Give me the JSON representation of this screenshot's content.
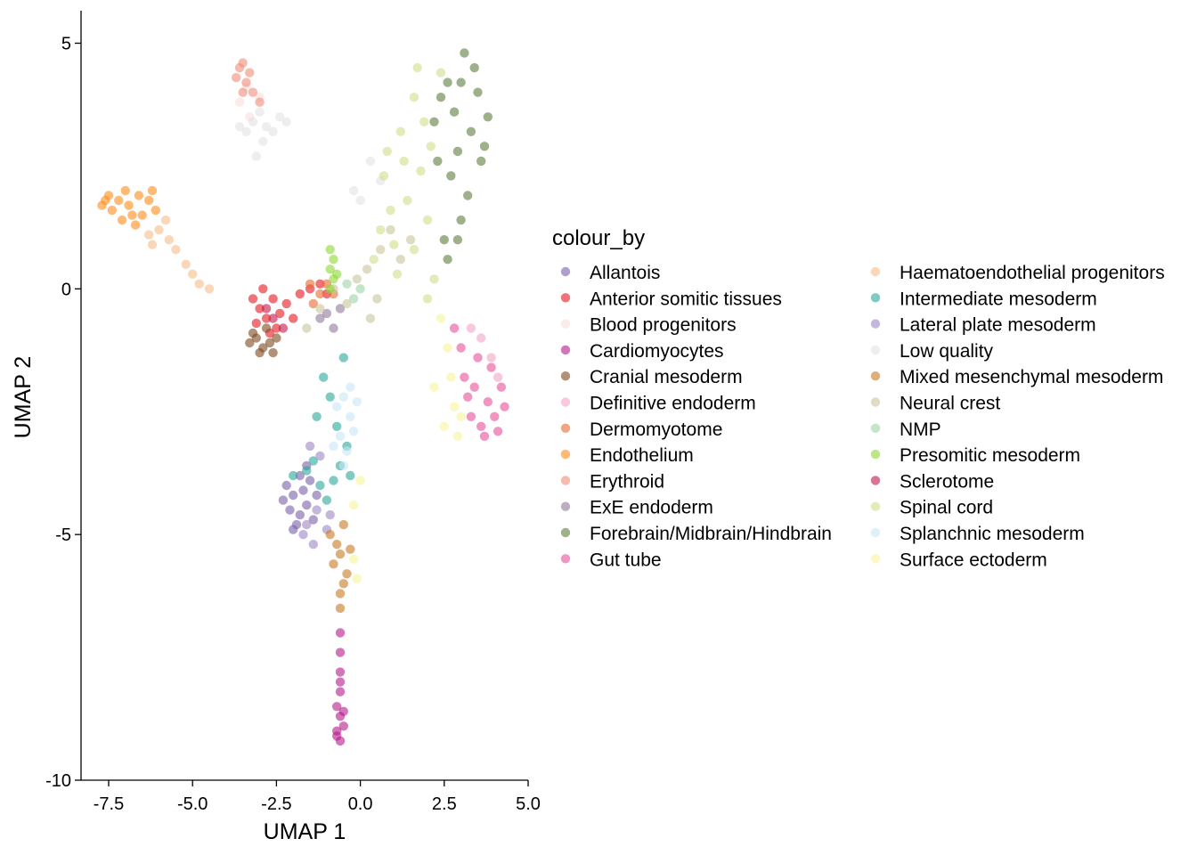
{
  "chart_data": {
    "type": "scatter",
    "title": "",
    "xlabel": "UMAP 1",
    "ylabel": "UMAP 2",
    "xlim": [
      -8.5,
      5.0
    ],
    "ylim": [
      -10.0,
      5.6
    ],
    "x_ticks": [
      -7.5,
      -5.0,
      -2.5,
      0.0,
      2.5,
      5.0
    ],
    "x_tick_labels": [
      "-7.5",
      "-5.0",
      "-2.5",
      "0.0",
      "2.5",
      "5.0"
    ],
    "y_ticks": [
      5,
      0,
      -5,
      -10
    ],
    "y_tick_labels": [
      "5",
      "0",
      "-5",
      "-10"
    ],
    "grid": false,
    "legend": {
      "title": "colour_by",
      "placement": "right",
      "columns": 2
    },
    "point_opacity": 0.6,
    "series": [
      {
        "name": "Allantois",
        "color": "#7a5fa8",
        "points": [
          [
            -2.0,
            -4.2
          ],
          [
            -1.8,
            -4.6
          ],
          [
            -2.2,
            -4.0
          ],
          [
            -1.6,
            -4.4
          ],
          [
            -1.9,
            -4.8
          ],
          [
            -2.1,
            -4.5
          ],
          [
            -1.5,
            -3.9
          ],
          [
            -1.7,
            -4.1
          ],
          [
            -2.3,
            -4.3
          ],
          [
            -1.4,
            -4.7
          ],
          [
            -1.8,
            -3.8
          ],
          [
            -2.0,
            -4.9
          ],
          [
            -1.3,
            -4.2
          ],
          [
            -1.6,
            -3.6
          ]
        ]
      },
      {
        "name": "Anterior somitic tissues",
        "color": "#e6151f",
        "points": [
          [
            -3.0,
            -0.4
          ],
          [
            -2.8,
            -0.6
          ],
          [
            -2.6,
            -0.2
          ],
          [
            -2.4,
            -0.5
          ],
          [
            -3.1,
            -0.7
          ],
          [
            -2.2,
            -0.3
          ],
          [
            -1.8,
            -0.1
          ],
          [
            -2.9,
            0.0
          ],
          [
            -2.5,
            -0.8
          ],
          [
            -2.0,
            -0.6
          ],
          [
            -1.5,
            0.0
          ],
          [
            -1.2,
            0.1
          ],
          [
            -3.2,
            -0.2
          ],
          [
            -2.7,
            -0.9
          ],
          [
            -1.0,
            -0.1
          ]
        ]
      },
      {
        "name": "Blood progenitors",
        "color": "#f9dede",
        "points": [
          [
            -3.6,
            3.8
          ],
          [
            -3.3,
            3.5
          ],
          [
            -3.0,
            3.9
          ],
          [
            -3.4,
            4.1
          ]
        ]
      },
      {
        "name": "Cardiomyocytes",
        "color": "#b5198a",
        "points": [
          [
            -0.6,
            -8.7
          ],
          [
            -0.7,
            -9.0
          ],
          [
            -0.6,
            -9.2
          ],
          [
            -0.5,
            -8.9
          ],
          [
            -0.7,
            -8.5
          ],
          [
            -0.6,
            -8.2
          ],
          [
            -0.6,
            -7.8
          ],
          [
            -0.6,
            -7.4
          ],
          [
            -0.6,
            -7.0
          ],
          [
            -0.7,
            -9.1
          ],
          [
            -0.5,
            -8.6
          ],
          [
            -0.6,
            -8.0
          ]
        ]
      },
      {
        "name": "Cranial mesoderm",
        "color": "#7d4a1f",
        "points": [
          [
            -3.1,
            -1.0
          ],
          [
            -2.9,
            -1.2
          ],
          [
            -3.2,
            -0.9
          ],
          [
            -2.7,
            -1.1
          ],
          [
            -3.0,
            -1.3
          ],
          [
            -2.5,
            -1.0
          ],
          [
            -2.8,
            -0.8
          ],
          [
            -3.3,
            -1.1
          ],
          [
            -2.6,
            -1.3
          ]
        ]
      },
      {
        "name": "Definitive endoderm",
        "color": "#f4a3c7",
        "points": [
          [
            3.6,
            -1.0
          ],
          [
            3.9,
            -1.4
          ],
          [
            3.3,
            -0.8
          ],
          [
            4.1,
            -1.8
          ]
        ]
      },
      {
        "name": "Dermomyotome",
        "color": "#e86a30",
        "points": [
          [
            -1.5,
            0.1
          ],
          [
            -1.2,
            -0.1
          ],
          [
            -1.0,
            0.1
          ],
          [
            -1.4,
            -0.3
          ],
          [
            -0.8,
            -0.1
          ]
        ]
      },
      {
        "name": "Endothelium",
        "color": "#ff8c1a",
        "points": [
          [
            -7.5,
            1.9
          ],
          [
            -7.2,
            1.8
          ],
          [
            -6.9,
            1.7
          ],
          [
            -6.6,
            1.9
          ],
          [
            -7.4,
            1.6
          ],
          [
            -7.0,
            2.0
          ],
          [
            -6.8,
            1.5
          ],
          [
            -7.6,
            1.8
          ],
          [
            -6.3,
            1.8
          ],
          [
            -6.1,
            1.6
          ],
          [
            -7.1,
            1.4
          ],
          [
            -6.5,
            1.5
          ],
          [
            -7.7,
            1.7
          ],
          [
            -6.7,
            1.3
          ],
          [
            -6.2,
            2.0
          ]
        ]
      },
      {
        "name": "Erythroid",
        "color": "#f28c78",
        "points": [
          [
            -3.6,
            4.5
          ],
          [
            -3.4,
            4.2
          ],
          [
            -3.2,
            4.0
          ],
          [
            -3.5,
            4.0
          ],
          [
            -3.7,
            4.3
          ],
          [
            -3.3,
            4.4
          ],
          [
            -3.0,
            3.8
          ],
          [
            -3.5,
            4.6
          ]
        ]
      },
      {
        "name": "ExE endoderm",
        "color": "#8f7a99",
        "points": [
          [
            -1.0,
            -0.5
          ],
          [
            -0.8,
            -0.8
          ],
          [
            -1.2,
            -0.6
          ],
          [
            -0.6,
            -0.4
          ]
        ]
      },
      {
        "name": "Forebrain/Midbrain/Hindbrain",
        "color": "#5e7d3e",
        "points": [
          [
            2.6,
            4.2
          ],
          [
            2.8,
            3.6
          ],
          [
            3.1,
            4.8
          ],
          [
            2.4,
            3.9
          ],
          [
            3.3,
            3.2
          ],
          [
            2.9,
            2.8
          ],
          [
            3.5,
            4.0
          ],
          [
            2.7,
            2.3
          ],
          [
            3.2,
            1.9
          ],
          [
            3.0,
            1.4
          ],
          [
            2.5,
            1.0
          ],
          [
            3.6,
            2.6
          ],
          [
            2.2,
            3.4
          ],
          [
            3.8,
            3.5
          ],
          [
            3.4,
            4.5
          ],
          [
            2.9,
            1.0
          ],
          [
            2.6,
            0.6
          ],
          [
            3.0,
            4.2
          ],
          [
            3.7,
            2.9
          ],
          [
            2.3,
            2.6
          ]
        ]
      },
      {
        "name": "Gut tube",
        "color": "#e8509b",
        "points": [
          [
            3.4,
            -2.0
          ],
          [
            3.8,
            -2.3
          ],
          [
            4.0,
            -2.6
          ],
          [
            3.6,
            -2.8
          ],
          [
            3.2,
            -2.2
          ],
          [
            4.2,
            -2.0
          ],
          [
            3.9,
            -1.6
          ],
          [
            3.5,
            -1.4
          ],
          [
            3.0,
            -1.2
          ],
          [
            2.8,
            -0.8
          ],
          [
            4.1,
            -2.9
          ],
          [
            3.7,
            -3.0
          ],
          [
            3.3,
            -2.6
          ],
          [
            4.3,
            -2.4
          ],
          [
            3.1,
            -1.8
          ]
        ]
      },
      {
        "name": "Haematoendothelial progenitors",
        "color": "#f8bd8c",
        "points": [
          [
            -6.0,
            1.2
          ],
          [
            -5.7,
            1.0
          ],
          [
            -6.3,
            1.1
          ],
          [
            -5.5,
            0.8
          ],
          [
            -5.2,
            0.5
          ],
          [
            -5.0,
            0.3
          ],
          [
            -5.8,
            1.4
          ],
          [
            -6.2,
            0.9
          ],
          [
            -4.8,
            0.1
          ],
          [
            -4.5,
            0.0
          ]
        ]
      },
      {
        "name": "Intermediate mesoderm",
        "color": "#2aa69b",
        "points": [
          [
            -2.0,
            -3.8
          ],
          [
            -1.6,
            -3.7
          ],
          [
            -1.2,
            -4.0
          ],
          [
            -0.8,
            -3.9
          ],
          [
            -1.4,
            -3.5
          ],
          [
            -0.6,
            -3.6
          ],
          [
            -1.0,
            -4.3
          ],
          [
            -0.3,
            -3.8
          ],
          [
            -0.9,
            -2.2
          ],
          [
            -0.5,
            -1.4
          ],
          [
            -1.1,
            -1.8
          ],
          [
            -0.7,
            -2.8
          ],
          [
            -0.4,
            -3.2
          ],
          [
            -1.3,
            -2.6
          ]
        ]
      },
      {
        "name": "Lateral plate mesoderm",
        "color": "#9e87c4",
        "points": [
          [
            -1.6,
            -4.8
          ],
          [
            -1.3,
            -4.5
          ],
          [
            -1.0,
            -4.9
          ],
          [
            -1.7,
            -5.0
          ],
          [
            -1.2,
            -3.4
          ],
          [
            -1.5,
            -3.2
          ],
          [
            -1.4,
            -5.2
          ],
          [
            -0.9,
            -4.6
          ]
        ]
      },
      {
        "name": "Low quality",
        "color": "#e3e3e3",
        "points": [
          [
            -3.2,
            3.4
          ],
          [
            -2.8,
            3.3
          ],
          [
            -2.4,
            3.5
          ],
          [
            -3.6,
            3.3
          ],
          [
            -3.0,
            3.6
          ],
          [
            -2.6,
            3.2
          ],
          [
            -2.2,
            3.4
          ],
          [
            -3.4,
            3.2
          ],
          [
            -2.9,
            3.0
          ],
          [
            -3.1,
            2.7
          ],
          [
            -0.2,
            2.0
          ],
          [
            0.3,
            2.6
          ],
          [
            0.0,
            1.8
          ],
          [
            0.6,
            2.2
          ]
        ]
      },
      {
        "name": "Mixed mesenchymal mesoderm",
        "color": "#c87a22",
        "points": [
          [
            -0.6,
            -5.4
          ],
          [
            -0.4,
            -5.8
          ],
          [
            -0.7,
            -5.2
          ],
          [
            -0.5,
            -6.0
          ],
          [
            -0.8,
            -5.6
          ],
          [
            -0.3,
            -5.3
          ],
          [
            -0.6,
            -6.2
          ],
          [
            -0.6,
            -6.5
          ],
          [
            -0.9,
            -5.0
          ],
          [
            -0.5,
            -4.8
          ]
        ]
      },
      {
        "name": "Neural crest",
        "color": "#c8c79c",
        "points": [
          [
            -1.2,
            -0.4
          ],
          [
            -0.8,
            0.0
          ],
          [
            -0.4,
            -0.3
          ],
          [
            0.2,
            0.4
          ],
          [
            0.6,
            0.8
          ],
          [
            0.9,
            1.2
          ],
          [
            0.3,
            -0.6
          ],
          [
            -0.1,
            0.2
          ],
          [
            1.2,
            0.6
          ],
          [
            0.5,
            -0.2
          ],
          [
            -1.6,
            -0.8
          ],
          [
            1.5,
            1.0
          ]
        ]
      },
      {
        "name": "NMP",
        "color": "#9fd3a6",
        "points": [
          [
            -0.2,
            -0.2
          ],
          [
            0.0,
            0.0
          ],
          [
            -0.4,
            0.1
          ]
        ]
      },
      {
        "name": "Presomitic mesoderm",
        "color": "#8ed832",
        "points": [
          [
            -0.9,
            0.8
          ],
          [
            -0.8,
            0.6
          ],
          [
            -0.9,
            0.4
          ],
          [
            -0.8,
            0.2
          ],
          [
            -0.9,
            0.0
          ],
          [
            -0.7,
            0.3
          ]
        ]
      },
      {
        "name": "Sclerotome",
        "color": "#c0184f",
        "points": [
          [
            -2.6,
            -0.6
          ],
          [
            -2.3,
            -0.8
          ],
          [
            -2.8,
            -0.4
          ]
        ]
      },
      {
        "name": "Spinal cord",
        "color": "#cfe08a",
        "points": [
          [
            1.6,
            3.9
          ],
          [
            1.2,
            3.2
          ],
          [
            0.8,
            2.8
          ],
          [
            1.8,
            2.4
          ],
          [
            1.4,
            1.8
          ],
          [
            2.0,
            1.4
          ],
          [
            0.9,
            1.6
          ],
          [
            1.6,
            0.8
          ],
          [
            2.2,
            0.2
          ],
          [
            1.3,
            2.6
          ],
          [
            2.4,
            4.4
          ],
          [
            1.9,
            3.4
          ],
          [
            0.6,
            1.2
          ],
          [
            1.1,
            0.3
          ],
          [
            2.0,
            -0.2
          ],
          [
            0.4,
            0.6
          ],
          [
            1.7,
            4.5
          ],
          [
            2.1,
            2.9
          ],
          [
            0.7,
            2.3
          ],
          [
            1.0,
            0.9
          ]
        ]
      },
      {
        "name": "Splanchnic mesoderm",
        "color": "#c8e6f5",
        "points": [
          [
            -0.5,
            -2.2
          ],
          [
            -0.3,
            -2.6
          ],
          [
            -0.6,
            -3.0
          ],
          [
            -0.2,
            -2.9
          ],
          [
            -0.7,
            -2.4
          ],
          [
            -0.4,
            -3.3
          ],
          [
            -0.1,
            -2.3
          ],
          [
            -0.8,
            -3.2
          ],
          [
            -0.5,
            -3.6
          ],
          [
            -0.3,
            -2.0
          ]
        ]
      },
      {
        "name": "Surface ectoderm",
        "color": "#f8f59a",
        "points": [
          [
            2.4,
            -0.6
          ],
          [
            2.6,
            -1.2
          ],
          [
            2.8,
            -2.4
          ],
          [
            2.5,
            -2.8
          ],
          [
            2.2,
            -2.0
          ],
          [
            2.9,
            -3.0
          ],
          [
            3.0,
            -2.6
          ],
          [
            2.7,
            -1.8
          ],
          [
            -0.2,
            -5.5
          ],
          [
            -0.1,
            -5.9
          ],
          [
            0.0,
            -3.9
          ],
          [
            -0.2,
            -4.4
          ]
        ]
      }
    ]
  }
}
